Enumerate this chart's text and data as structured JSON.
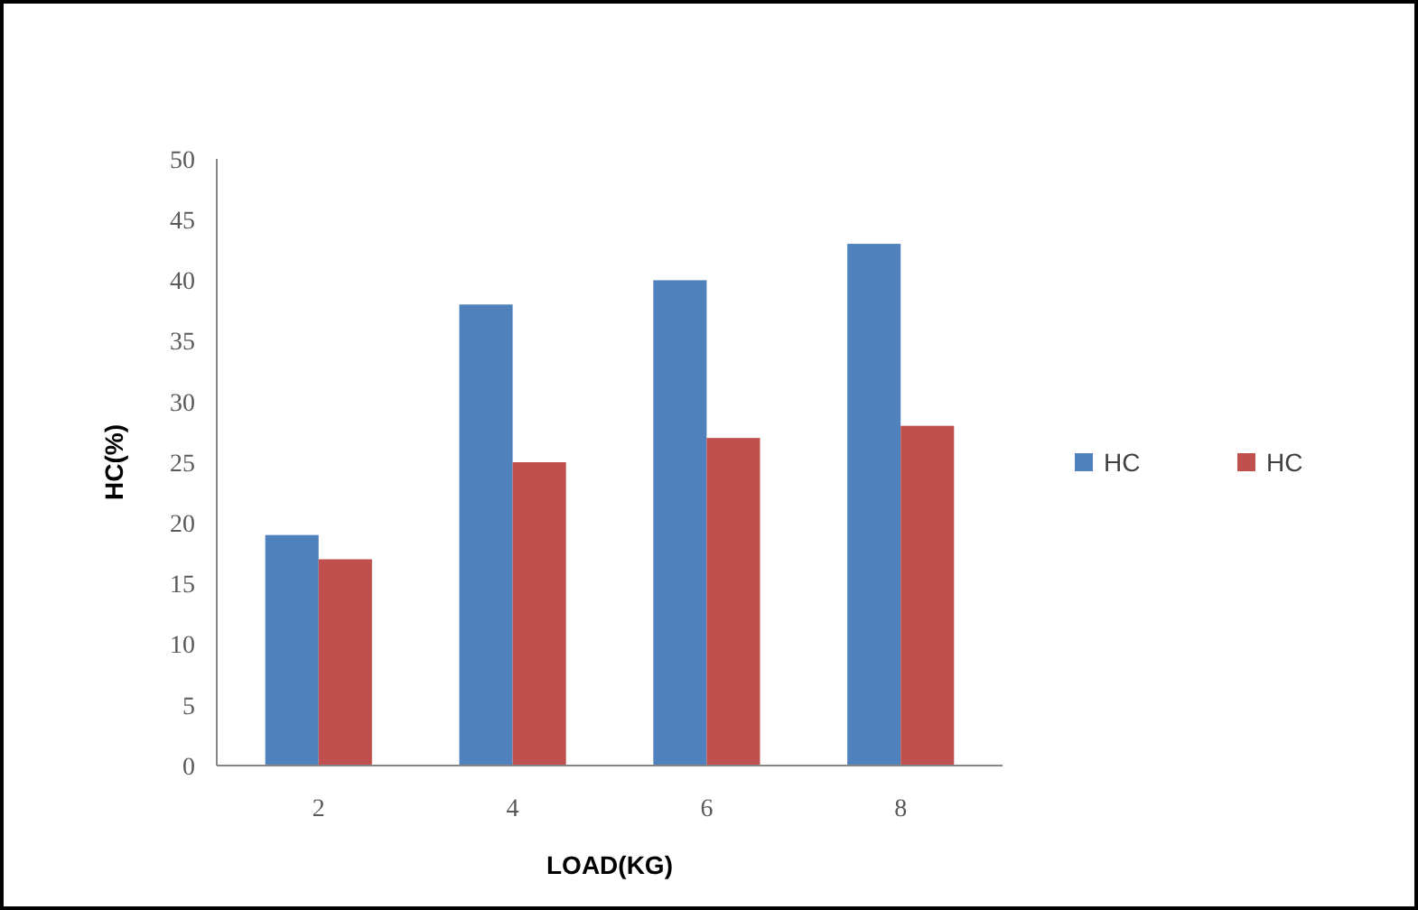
{
  "chart_data": {
    "type": "bar",
    "xlabel": "LOAD(KG)",
    "ylabel": "HC(%)",
    "categories": [
      "2",
      "4",
      "6",
      "8"
    ],
    "series": [
      {
        "name": "HC",
        "color": "#4f81bd",
        "values": [
          19,
          38,
          40,
          43
        ]
      },
      {
        "name": "HC",
        "color": "#c0504d",
        "values": [
          17,
          25,
          27,
          28
        ]
      }
    ],
    "ylim": [
      0,
      50
    ],
    "yticks": [
      0,
      5,
      10,
      15,
      20,
      25,
      30,
      35,
      40,
      45,
      50
    ],
    "grid": false,
    "legend": "right"
  }
}
